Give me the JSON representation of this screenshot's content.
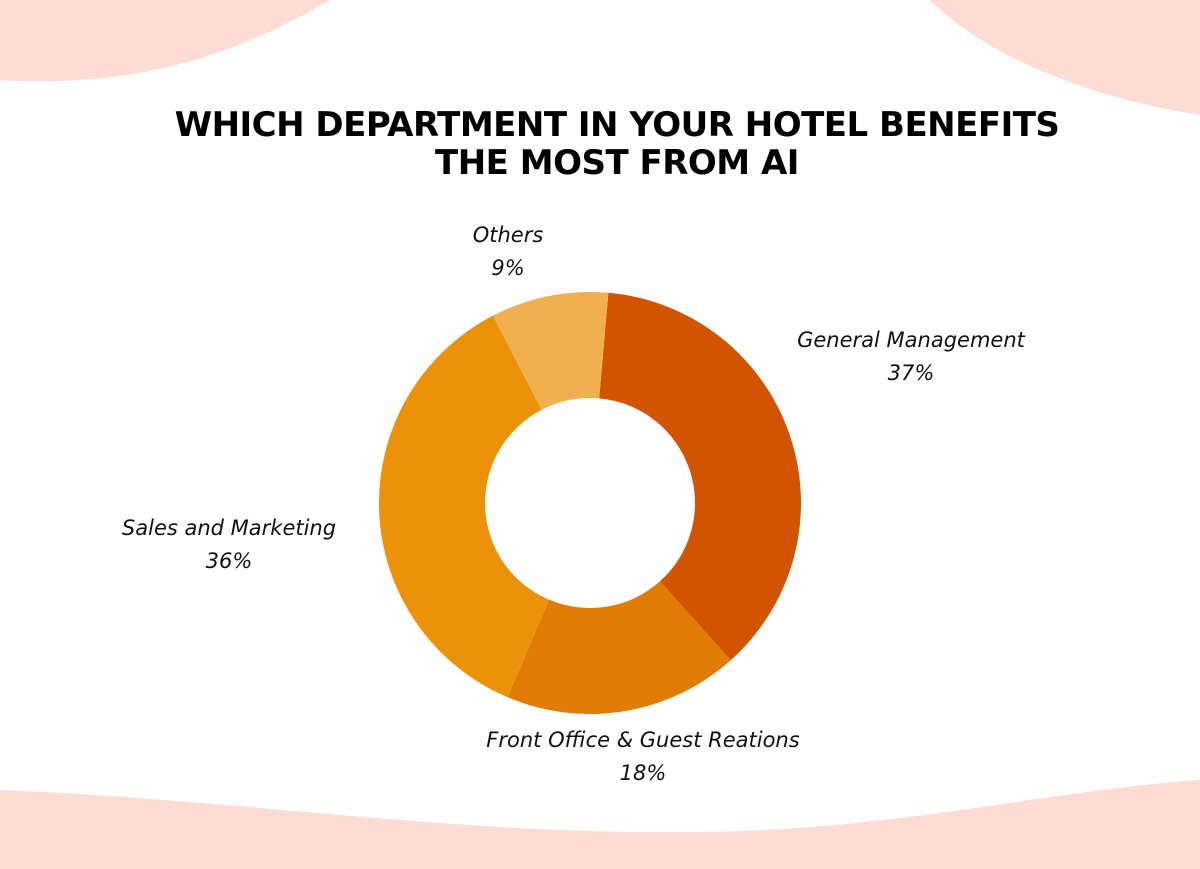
{
  "chart_data": {
    "type": "donut",
    "title": "WHICH DEPARTMENT IN YOUR HOTEL BENEFITS THE MOST FROM AI",
    "categories": [
      "General Management",
      "Front Office & Guest Reations",
      "Sales and Marketing",
      "Others"
    ],
    "values": [
      37,
      18,
      36,
      9
    ],
    "value_labels": [
      "37%",
      "18%",
      "36%",
      "9%"
    ],
    "colors": [
      "#d35400",
      "#e07b04",
      "#ec9209",
      "#f0b04f"
    ]
  }
}
